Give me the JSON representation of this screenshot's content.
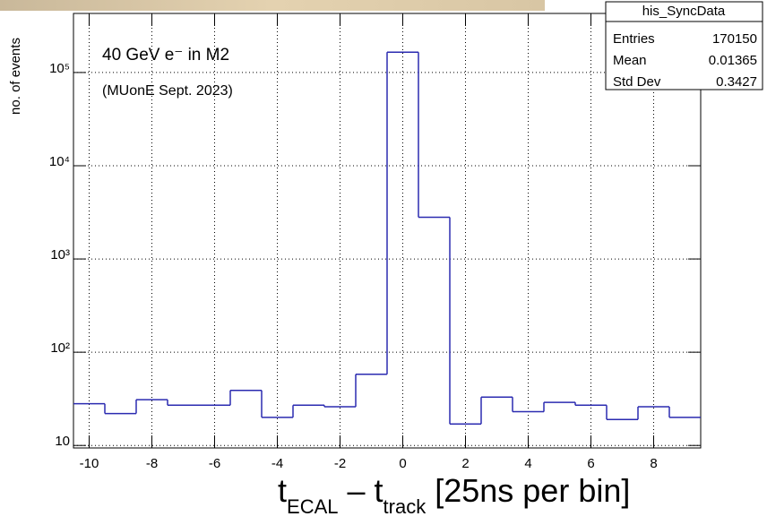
{
  "chart_data": {
    "type": "histogram",
    "annotations": [
      "40 GeV e⁻ in M2",
      "(MUonE Sept. 2023)"
    ],
    "ylabel": "no. of events",
    "xlabel_parts": [
      {
        "text": "t"
      },
      {
        "text": "ECAL",
        "sub": true
      },
      {
        "text": " – t"
      },
      {
        "text": "track",
        "sub": true
      },
      {
        "text": " [25ns per bin]"
      }
    ],
    "bins": [
      -10.5,
      -9.5,
      -8.5,
      -7.5,
      -6.5,
      -5.5,
      -4.5,
      -3.5,
      -2.5,
      -1.5,
      -0.5,
      0.5,
      1.5,
      2.5,
      3.5,
      4.5,
      5.5,
      6.5,
      7.5,
      8.5,
      9.5
    ],
    "values": [
      28,
      22,
      31,
      27,
      27,
      39,
      20,
      27,
      26,
      58,
      165000,
      2800,
      17,
      33,
      23,
      29,
      27,
      19,
      26,
      20
    ],
    "color": "#2b2bb0",
    "xlim": [
      -10.5,
      9.5
    ],
    "xticks": [
      -10,
      -8,
      -6,
      -4,
      -2,
      0,
      2,
      4,
      6,
      8
    ],
    "ylim": [
      9.4,
      430000
    ],
    "log_y": true,
    "yticks": [
      10,
      {
        "value": 100,
        "label": "10²"
      },
      {
        "value": 1000,
        "label": "10³"
      },
      {
        "value": 10000,
        "label": "10⁴"
      },
      {
        "value": 100000,
        "label": "10⁵"
      }
    ],
    "grid": true,
    "stats": {
      "title": "his_SyncData",
      "rows": [
        [
          "Entries",
          "170150"
        ],
        [
          "Mean",
          "0.01365"
        ],
        [
          "Std Dev",
          "0.3427"
        ]
      ]
    }
  }
}
